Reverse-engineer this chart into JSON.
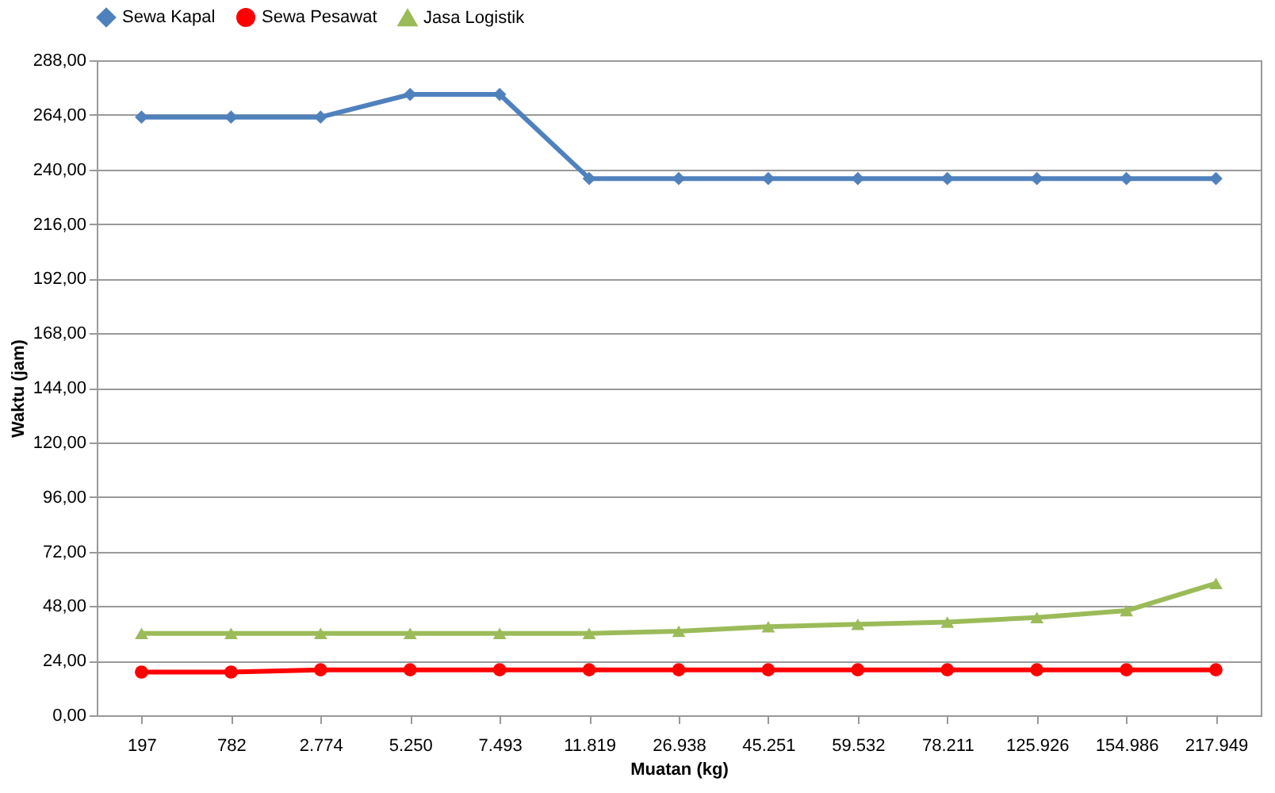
{
  "chart_data": {
    "type": "line",
    "categories": [
      "197",
      "782",
      "2.774",
      "5.250",
      "7.493",
      "11.819",
      "26.938",
      "45.251",
      "59.532",
      "78.211",
      "125.926",
      "154.986",
      "217.949"
    ],
    "series": [
      {
        "name": "Sewa Kapal",
        "color": "#4f81bd",
        "marker": "diamond",
        "values": [
          263,
          263,
          263,
          273,
          273,
          236,
          236,
          236,
          236,
          236,
          236,
          236,
          236
        ]
      },
      {
        "name": "Sewa Pesawat",
        "color": "#ff0000",
        "marker": "circle",
        "values": [
          19,
          19,
          20,
          20,
          20,
          20,
          20,
          20,
          20,
          20,
          20,
          20,
          20
        ]
      },
      {
        "name": "Jasa Logistik",
        "color": "#9bbb59",
        "marker": "triangle",
        "values": [
          36,
          36,
          36,
          36,
          36,
          36,
          37,
          39,
          40,
          41,
          43,
          46,
          58
        ]
      }
    ],
    "xlabel": "Muatan (kg)",
    "ylabel": "Waktu (jam)",
    "ylim": [
      0,
      288
    ],
    "yticks": [
      {
        "value": 0,
        "label": "0,00"
      },
      {
        "value": 24,
        "label": "24,00"
      },
      {
        "value": 48,
        "label": "48,00"
      },
      {
        "value": 72,
        "label": "72,00"
      },
      {
        "value": 96,
        "label": "96,00"
      },
      {
        "value": 120,
        "label": "120,00"
      },
      {
        "value": 144,
        "label": "144,00"
      },
      {
        "value": 168,
        "label": "168,00"
      },
      {
        "value": 192,
        "label": "192,00"
      },
      {
        "value": 216,
        "label": "216,00"
      },
      {
        "value": 240,
        "label": "240,00"
      },
      {
        "value": 264,
        "label": "264,00"
      },
      {
        "value": 288,
        "label": "288,00"
      }
    ],
    "grid": "y",
    "legend": "top",
    "line_style": "solid"
  }
}
